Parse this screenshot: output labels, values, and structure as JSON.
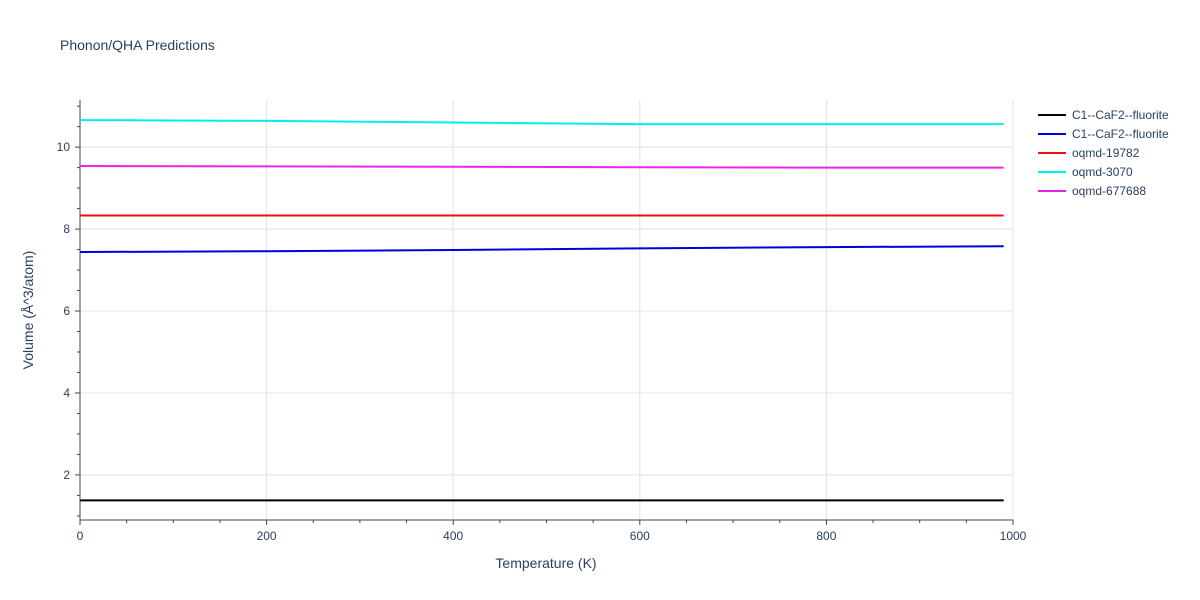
{
  "chart_data": {
    "type": "line",
    "title": "Phonon/QHA Predictions",
    "xlabel": "Temperature (K)",
    "ylabel": "Volume (Å^3/atom)",
    "xlim": [
      0,
      1000
    ],
    "ylim": [
      0.9,
      11.15
    ],
    "xticks": [
      0,
      200,
      400,
      600,
      800,
      1000
    ],
    "yticks": [
      2,
      4,
      6,
      8,
      10
    ],
    "grid": true,
    "legend_position": "top-right",
    "series": [
      {
        "name": "C1--CaF2--fluorite",
        "color": "#000000",
        "x": [
          0,
          200,
          400,
          600,
          800,
          990
        ],
        "y": [
          1.38,
          1.38,
          1.38,
          1.38,
          1.38,
          1.38
        ]
      },
      {
        "name": "C1--CaF2--fluorite",
        "color": "#0000dd",
        "x": [
          0,
          200,
          400,
          600,
          800,
          990
        ],
        "y": [
          7.44,
          7.46,
          7.49,
          7.53,
          7.56,
          7.58
        ]
      },
      {
        "name": "oqmd-19782",
        "color": "#ee1111",
        "x": [
          0,
          200,
          400,
          600,
          800,
          990
        ],
        "y": [
          8.33,
          8.33,
          8.33,
          8.33,
          8.33,
          8.33
        ]
      },
      {
        "name": "oqmd-3070",
        "color": "#00eeee",
        "x": [
          0,
          200,
          400,
          600,
          800,
          990
        ],
        "y": [
          10.66,
          10.64,
          10.6,
          10.56,
          10.56,
          10.56
        ]
      },
      {
        "name": "oqmd-677688",
        "color": "#ee22ee",
        "x": [
          0,
          200,
          400,
          600,
          800,
          990
        ],
        "y": [
          9.54,
          9.53,
          9.52,
          9.51,
          9.5,
          9.5
        ]
      }
    ]
  }
}
